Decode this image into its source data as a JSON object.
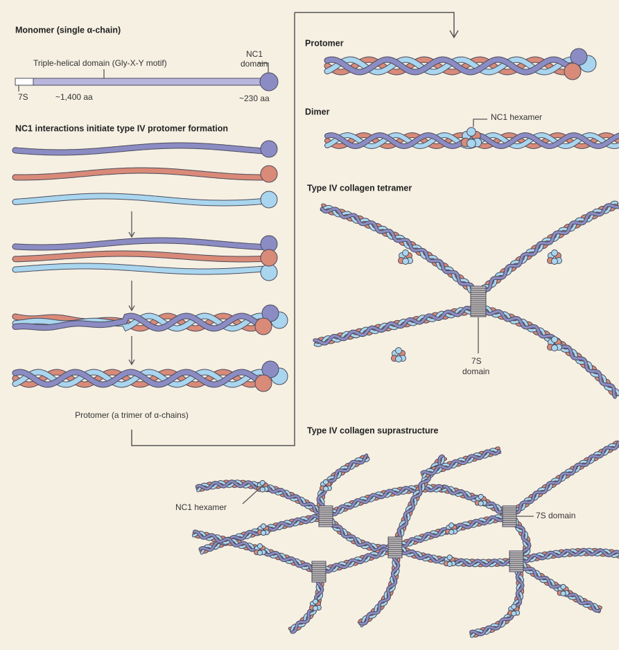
{
  "left_panel": {
    "monomer": {
      "title": "Monomer (single α-chain)",
      "helical_label": "Triple-helical domain (Gly-X-Y motif)",
      "nc1_label": [
        "NC1",
        "domain"
      ],
      "s7_label": "7S",
      "helical_length": "~1,400 aa",
      "nc1_length": "~230 aa"
    },
    "formation": {
      "title": "NC1 interactions initiate type IV protomer formation",
      "caption": "Protomer (a trimer of α-chains)"
    }
  },
  "right_panel": {
    "protomer": {
      "title": "Protomer"
    },
    "dimer": {
      "title": "Dimer",
      "hexamer_label": "NC1 hexamer"
    },
    "tetramer": {
      "title": "Type IV collagen tetramer",
      "domain_label": [
        "7S",
        "domain"
      ]
    },
    "suprastructure": {
      "title": "Type IV collagen suprastructure",
      "hexamer_label": "NC1 hexamer",
      "domain_label": "7S domain"
    }
  }
}
